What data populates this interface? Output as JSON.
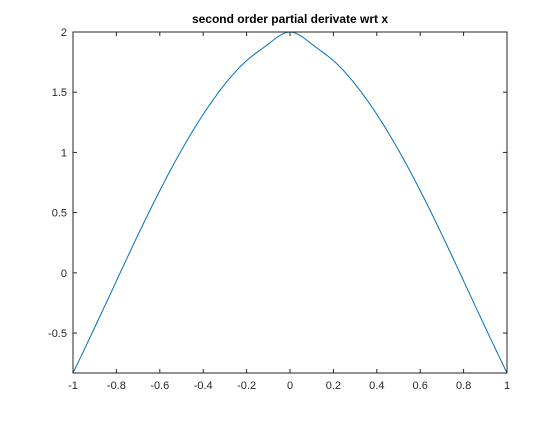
{
  "chart_data": {
    "type": "line",
    "title": "second order partial derivate wrt x",
    "xlabel": "",
    "ylabel": "",
    "xlim": [
      -1,
      1
    ],
    "ylim": [
      -0.8318,
      2
    ],
    "grid": false,
    "box": true,
    "xticks": [
      -1,
      -0.8,
      -0.6,
      -0.4,
      -0.2,
      0,
      0.2,
      0.4,
      0.6,
      0.8,
      1
    ],
    "xtick_labels": [
      "-1",
      "-0.8",
      "-0.6",
      "-0.4",
      "-0.2",
      "0",
      "0.2",
      "0.4",
      "0.6",
      "0.8",
      "1"
    ],
    "yticks": [
      -0.5,
      0,
      0.5,
      1,
      1.5,
      2
    ],
    "ytick_labels": [
      "-0.5",
      "0",
      "0.5",
      "1",
      "1.5",
      "2"
    ],
    "series": [
      {
        "color": "#0072bd",
        "x": [
          -1,
          -0.9,
          -0.8,
          -0.7,
          -0.6,
          -0.5,
          -0.4,
          -0.3,
          -0.2,
          -0.1,
          0,
          0.1,
          0.2,
          0.3,
          0.4,
          0.5,
          0.6,
          0.7,
          0.8,
          0.9,
          1
        ],
        "y": [
          -0.832,
          -0.454,
          -0.067,
          0.317,
          0.683,
          1.019,
          1.316,
          1.567,
          1.762,
          1.9,
          2.0,
          1.9,
          1.762,
          1.567,
          1.316,
          1.019,
          0.683,
          0.317,
          -0.067,
          -0.454,
          -0.832
        ]
      }
    ]
  }
}
